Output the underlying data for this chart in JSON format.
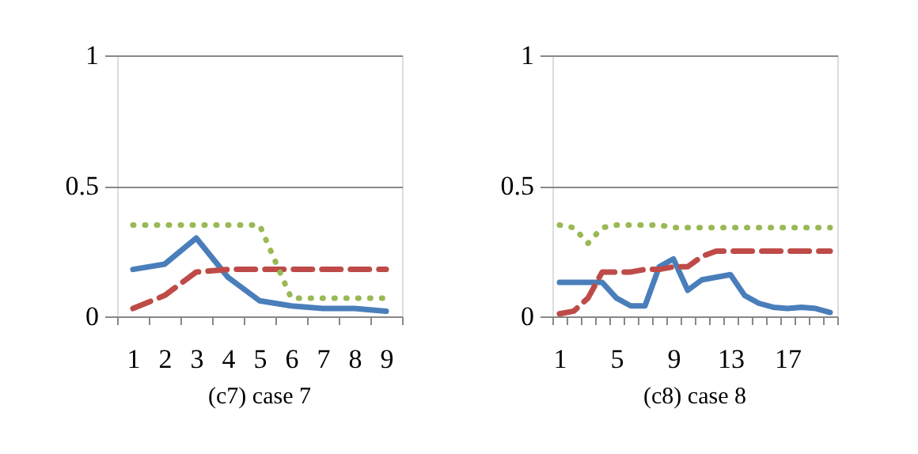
{
  "chart_data": [
    {
      "type": "line",
      "title": "(c7) case 7",
      "categories": [
        "1",
        "2",
        "3",
        "4",
        "5",
        "6",
        "7",
        "8",
        "9"
      ],
      "ylim": [
        0,
        1
      ],
      "yticks": [
        0,
        0.5,
        1
      ],
      "grid": "y",
      "series": [
        {
          "color": "#4a7ebb",
          "line_style": "solid",
          "values": [
            0.18,
            0.2,
            0.3,
            0.15,
            0.06,
            0.04,
            0.03,
            0.03,
            0.02
          ]
        },
        {
          "color": "#be4b48",
          "line_style": "dashed",
          "values": [
            0.03,
            0.08,
            0.17,
            0.18,
            0.18,
            0.18,
            0.18,
            0.18,
            0.18
          ]
        },
        {
          "color": "#98b954",
          "line_style": "dotted",
          "values": [
            0.35,
            0.35,
            0.35,
            0.35,
            0.35,
            0.07,
            0.07,
            0.07,
            0.07
          ]
        }
      ]
    },
    {
      "type": "line",
      "title": "(c8) case 8",
      "categories": [
        "1",
        null,
        null,
        null,
        "5",
        null,
        null,
        null,
        "9",
        null,
        null,
        null,
        "13",
        null,
        null,
        null,
        "17",
        null,
        null,
        null
      ],
      "ylim": [
        0,
        1
      ],
      "yticks": [
        0,
        0.5,
        1
      ],
      "grid": "y",
      "series": [
        {
          "color": "#4a7ebb",
          "line_style": "solid",
          "values": [
            0.13,
            0.13,
            0.13,
            0.13,
            0.07,
            0.04,
            0.04,
            0.19,
            0.22,
            0.1,
            0.14,
            0.15,
            0.16,
            0.08,
            0.05,
            0.035,
            0.03,
            0.035,
            0.03,
            0.015
          ]
        },
        {
          "color": "#be4b48",
          "line_style": "dashed",
          "values": [
            0.01,
            0.02,
            0.07,
            0.17,
            0.17,
            0.17,
            0.18,
            0.18,
            0.19,
            0.19,
            0.23,
            0.25,
            0.25,
            0.25,
            0.25,
            0.25,
            0.25,
            0.25,
            0.25,
            0.25
          ]
        },
        {
          "color": "#98b954",
          "line_style": "dotted",
          "values": [
            0.35,
            0.34,
            0.28,
            0.34,
            0.35,
            0.35,
            0.35,
            0.35,
            0.34,
            0.34,
            0.34,
            0.34,
            0.34,
            0.34,
            0.34,
            0.34,
            0.34,
            0.34,
            0.34,
            0.34
          ]
        }
      ]
    }
  ]
}
